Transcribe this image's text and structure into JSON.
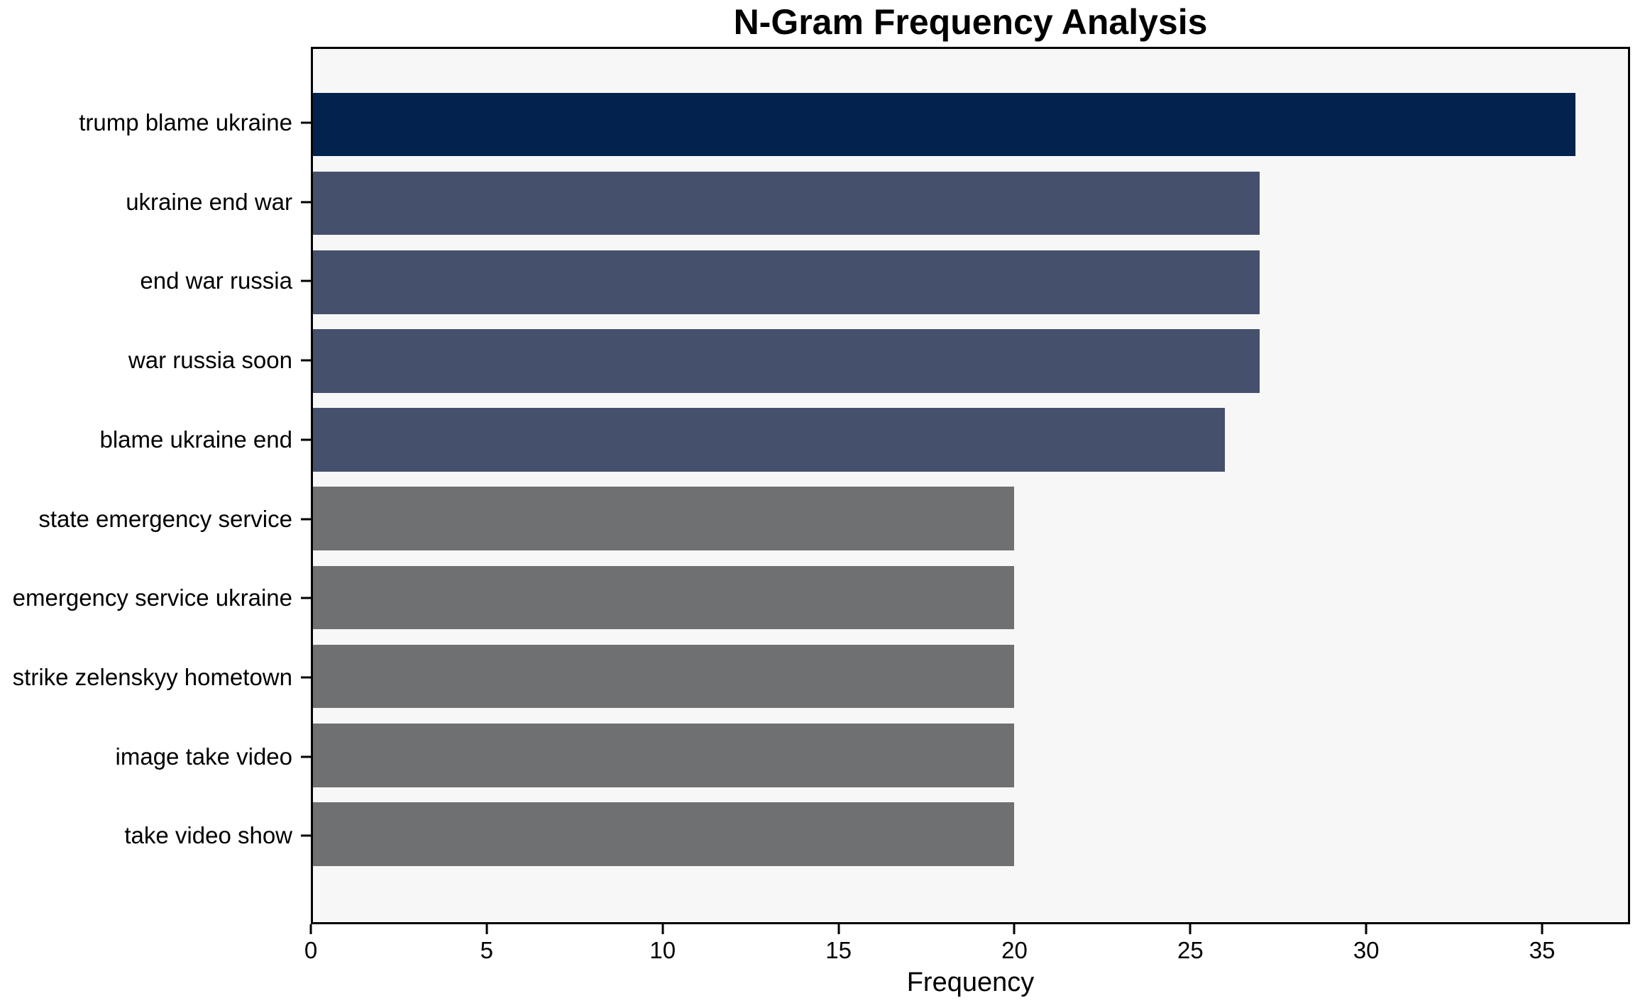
{
  "chart_data": {
    "type": "bar",
    "orientation": "horizontal",
    "title": "N-Gram Frequency Analysis",
    "xlabel": "Frequency",
    "ylabel": "",
    "categories": [
      "trump blame ukraine",
      "ukraine end war",
      "end war russia",
      "war russia soon",
      "blame ukraine end",
      "state emergency service",
      "emergency service ukraine",
      "strike zelenskyy hometown",
      "image take video",
      "take video show"
    ],
    "values": [
      36,
      27,
      27,
      27,
      26,
      20,
      20,
      20,
      20,
      20
    ],
    "bar_colors": [
      "#03234e",
      "#45506c",
      "#45506c",
      "#45506c",
      "#45506c",
      "#6f7072",
      "#6f7072",
      "#6f7072",
      "#6f7072",
      "#6f7072"
    ],
    "xticks": [
      0,
      5,
      10,
      15,
      20,
      25,
      30,
      35
    ],
    "xlim": [
      0,
      37.5
    ],
    "grid": false,
    "legend": null,
    "plot_background": "#f7f7f7",
    "figure_background": "#ffffff",
    "axis_color": "#000000",
    "text_color": "#000000"
  }
}
